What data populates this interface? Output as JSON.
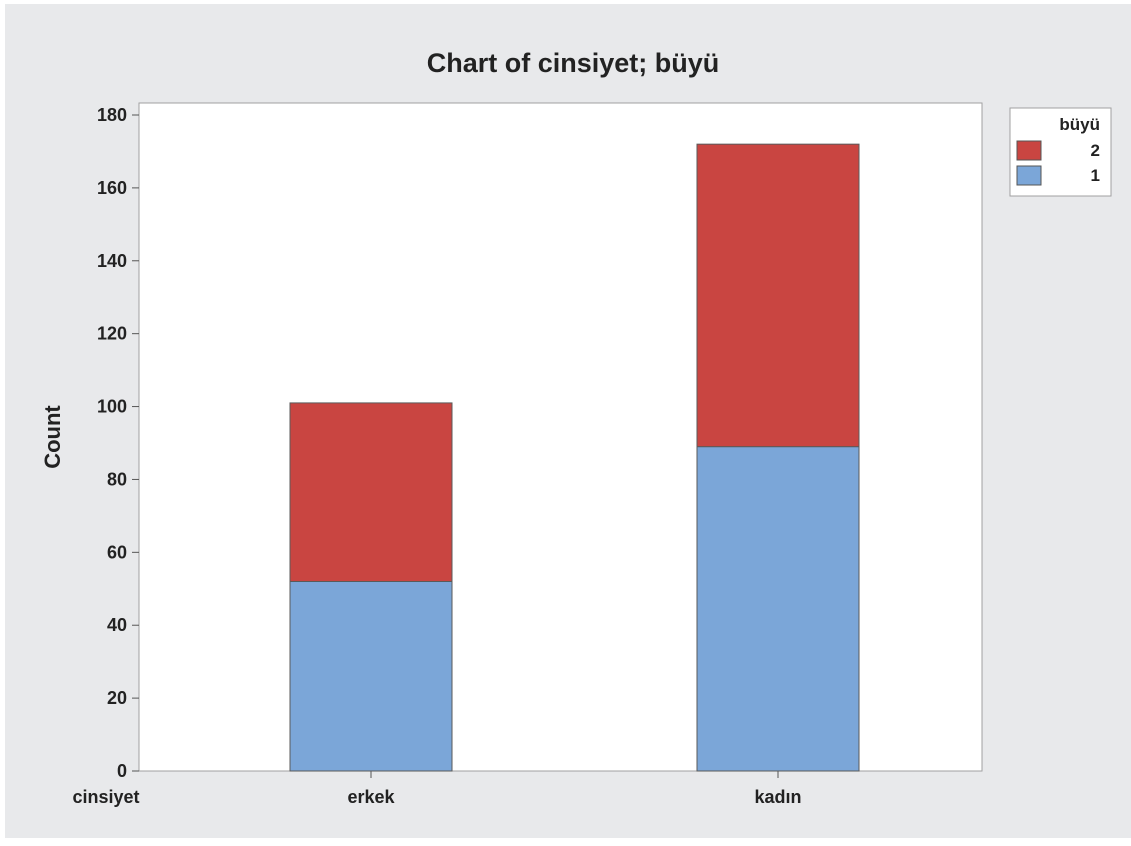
{
  "chart_data": {
    "type": "bar",
    "stacked": true,
    "title": "Chart of cinsiyet; büyü",
    "xlabel": "cinsiyet",
    "ylabel": "Count",
    "categories": [
      "erkek",
      "kadın"
    ],
    "series": [
      {
        "name": "1",
        "values": [
          52,
          89
        ],
        "color": "#7BA6D8"
      },
      {
        "name": "2",
        "values": [
          49,
          83
        ],
        "color": "#C94541"
      }
    ],
    "ylim": [
      0,
      180
    ],
    "yticks": [
      0,
      20,
      40,
      60,
      80,
      100,
      120,
      140,
      160,
      180
    ],
    "grid": false,
    "legend": {
      "title": "büyü",
      "placement": "top-right",
      "order": [
        "2",
        "1"
      ]
    },
    "colors": {
      "outer_background": "#E8E9EB",
      "plot_background": "#FFFFFF",
      "bar_edge": "#5A5A5A"
    }
  }
}
